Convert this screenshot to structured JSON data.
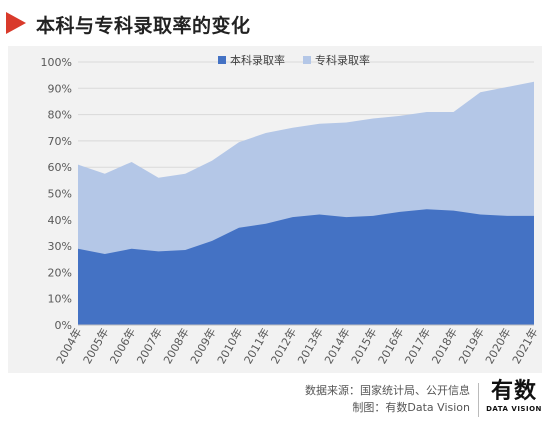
{
  "header": {
    "title": "本科与专科录取率的变化",
    "accent_color": "#d93a2b"
  },
  "chart_data": {
    "type": "area",
    "stacked": false,
    "title": "本科与专科录取率的变化",
    "categories": [
      "2004年",
      "2005年",
      "2006年",
      "2007年",
      "2008年",
      "2009年",
      "2010年",
      "2011年",
      "2012年",
      "2013年",
      "2014年",
      "2015年",
      "2016年",
      "2017年",
      "2018年",
      "2019年",
      "2020年",
      "2021年"
    ],
    "series": [
      {
        "name": "本科录取率",
        "color": "#4472c4",
        "values": [
          29,
          27,
          29,
          28,
          28.5,
          32,
          37,
          38.5,
          41,
          42,
          41,
          41.5,
          43,
          44,
          43.5,
          42,
          41.5,
          41.5
        ]
      },
      {
        "name": "专科录取率",
        "color": "#b4c7e7",
        "values": [
          61,
          57.5,
          62,
          56,
          57.5,
          62.5,
          69.5,
          73,
          75,
          76.5,
          77,
          78.5,
          79.5,
          81,
          81,
          88.5,
          90.5,
          92.5
        ]
      }
    ],
    "y_ticks": [
      "0%",
      "10%",
      "20%",
      "30%",
      "40%",
      "50%",
      "60%",
      "70%",
      "80%",
      "90%",
      "100%"
    ],
    "ylim": [
      0,
      100
    ],
    "grid": true,
    "legend_position": "top-center",
    "xlabel": "",
    "ylabel": ""
  },
  "footer": {
    "source_line1": "数据来源：国家统计局、公开信息",
    "source_line2": "制图：有数Data Vision",
    "logo_main": "有数",
    "logo_sub": "DATA VISION"
  }
}
